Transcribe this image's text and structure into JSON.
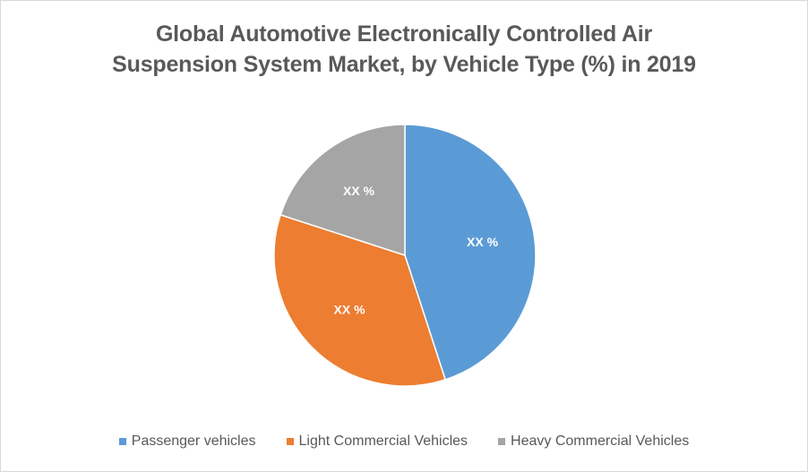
{
  "chart_data": {
    "type": "pie",
    "title_lines": [
      "Global Automotive Electronically Controlled Air",
      "Suspension System Market, by Vehicle Type (%) in 2019"
    ],
    "slices": [
      {
        "name": "Passenger vehicles",
        "value": 45,
        "label": "XX %",
        "color": "#5B9BD5"
      },
      {
        "name": "Light Commercial Vehicles",
        "value": 35,
        "label": "XX %",
        "color": "#ED7D31"
      },
      {
        "name": "Heavy Commercial Vehicles",
        "value": 20,
        "label": "XX %",
        "color": "#A5A5A5"
      }
    ],
    "start_angle_deg": 0,
    "direction": "clockwise",
    "legend_position": "bottom"
  }
}
